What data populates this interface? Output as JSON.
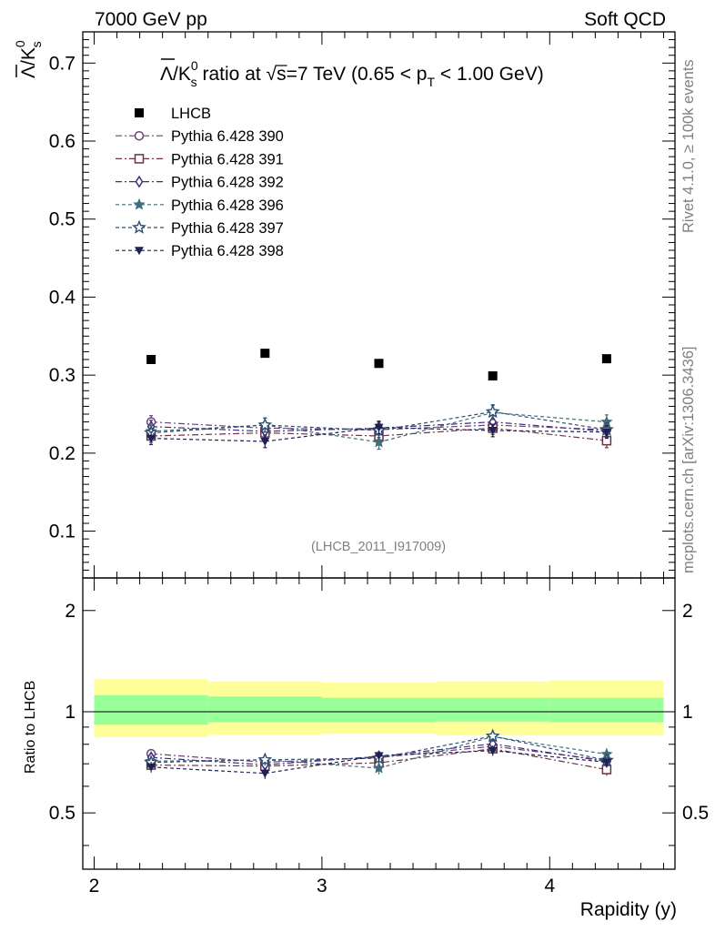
{
  "header": {
    "left": "7000 GeV pp",
    "right": "Soft QCD"
  },
  "side_texts": {
    "rivet": "Rivet 4.1.0, ≥ 100k events",
    "mcplots": "mcplots.cern.ch [arXiv:1306.3436]"
  },
  "chart_data": {
    "type": "scatter",
    "title": "Λ̄/K⁰ₛ ratio at √s=7 TeV (0.65 < pT < 1.00 GeV)",
    "title_parts": {
      "lambda": "Λ",
      "slash": "/K",
      "sup0": "0",
      "subs": "s",
      "ratio_at": " ratio at ",
      "sqrt": "√",
      "s_eq": "s=7 TeV (0.65 < p",
      "sub_T": "T",
      "range_end": " < 1.00 GeV)"
    },
    "ylabel_parts": {
      "lambda": "Λ",
      "slash": "/K",
      "sup0": "0",
      "subs": "s"
    },
    "xlabel": "Rapidity (y)",
    "ratio_ylabel": "Ratio to LHCB",
    "analysis_id": "(LHCB_2011_I917009)",
    "xlim": [
      1.95,
      4.55
    ],
    "ylim": [
      0.04,
      0.74
    ],
    "ratio_ylim": [
      0.34,
      2.5
    ],
    "x_ticks": [
      2,
      3,
      4
    ],
    "x_tick_labels": [
      "2",
      "3",
      "4"
    ],
    "y_ticks": [
      0.1,
      0.2,
      0.3,
      0.4,
      0.5,
      0.6,
      0.7
    ],
    "y_tick_labels": [
      "0.1",
      "0.2",
      "0.3",
      "0.4",
      "0.5",
      "0.6",
      "0.7"
    ],
    "ratio_ticks": [
      0.5,
      1,
      2
    ],
    "ratio_tick_labels": [
      "0.5",
      "1",
      "2"
    ],
    "x": [
      2.25,
      2.75,
      3.25,
      3.75,
      4.25
    ],
    "x_edges": [
      2.0,
      2.5,
      3.0,
      3.5,
      4.0,
      4.5
    ],
    "data": {
      "name": "LHCB",
      "values": [
        0.32,
        0.328,
        0.315,
        0.299,
        0.321
      ],
      "band_inner": [
        [
          0.915,
          1.12
        ],
        [
          0.93,
          1.11
        ],
        [
          0.93,
          1.1
        ],
        [
          0.935,
          1.1
        ],
        [
          0.93,
          1.1
        ]
      ],
      "band_outer": [
        [
          0.84,
          1.25
        ],
        [
          0.855,
          1.23
        ],
        [
          0.86,
          1.22
        ],
        [
          0.85,
          1.23
        ],
        [
          0.85,
          1.24
        ]
      ]
    },
    "series": [
      {
        "name": "Pythia 6.428 390",
        "color": "#6e3f7a",
        "marker": "circle-open",
        "dash": "7,3,2,3",
        "values": [
          0.24,
          0.232,
          0.23,
          0.236,
          0.23
        ],
        "errors": [
          0.008,
          0.008,
          0.008,
          0.008,
          0.008
        ]
      },
      {
        "name": "Pythia 6.428 391",
        "color": "#6b3344",
        "marker": "square-open",
        "dash": "7,3,2,3",
        "values": [
          0.222,
          0.226,
          0.222,
          0.232,
          0.216
        ],
        "errors": [
          0.008,
          0.008,
          0.008,
          0.008,
          0.009
        ]
      },
      {
        "name": "Pythia 6.428 392",
        "color": "#3d2d7a",
        "marker": "diamond-open",
        "dash": "7,3,2,3",
        "values": [
          0.234,
          0.228,
          0.232,
          0.24,
          0.228
        ],
        "errors": [
          0.008,
          0.008,
          0.008,
          0.008,
          0.008
        ]
      },
      {
        "name": "Pythia 6.428 396",
        "color": "#3f6d7a",
        "marker": "star-filled",
        "dash": "4,3",
        "values": [
          0.228,
          0.236,
          0.214,
          0.252,
          0.24
        ],
        "errors": [
          0.009,
          0.009,
          0.009,
          0.009,
          0.009
        ]
      },
      {
        "name": "Pythia 6.428 397",
        "color": "#2f4f6e",
        "marker": "star-open",
        "dash": "4,3",
        "values": [
          0.226,
          0.236,
          0.229,
          0.253,
          0.23
        ],
        "errors": [
          0.009,
          0.009,
          0.009,
          0.009,
          0.009
        ]
      },
      {
        "name": "Pythia 6.428 398",
        "color": "#1e2155",
        "marker": "triangle-down-filled",
        "dash": "4,3",
        "values": [
          0.219,
          0.215,
          0.233,
          0.229,
          0.227
        ],
        "errors": [
          0.008,
          0.008,
          0.008,
          0.008,
          0.008
        ]
      }
    ],
    "legend_position": "top-left"
  }
}
